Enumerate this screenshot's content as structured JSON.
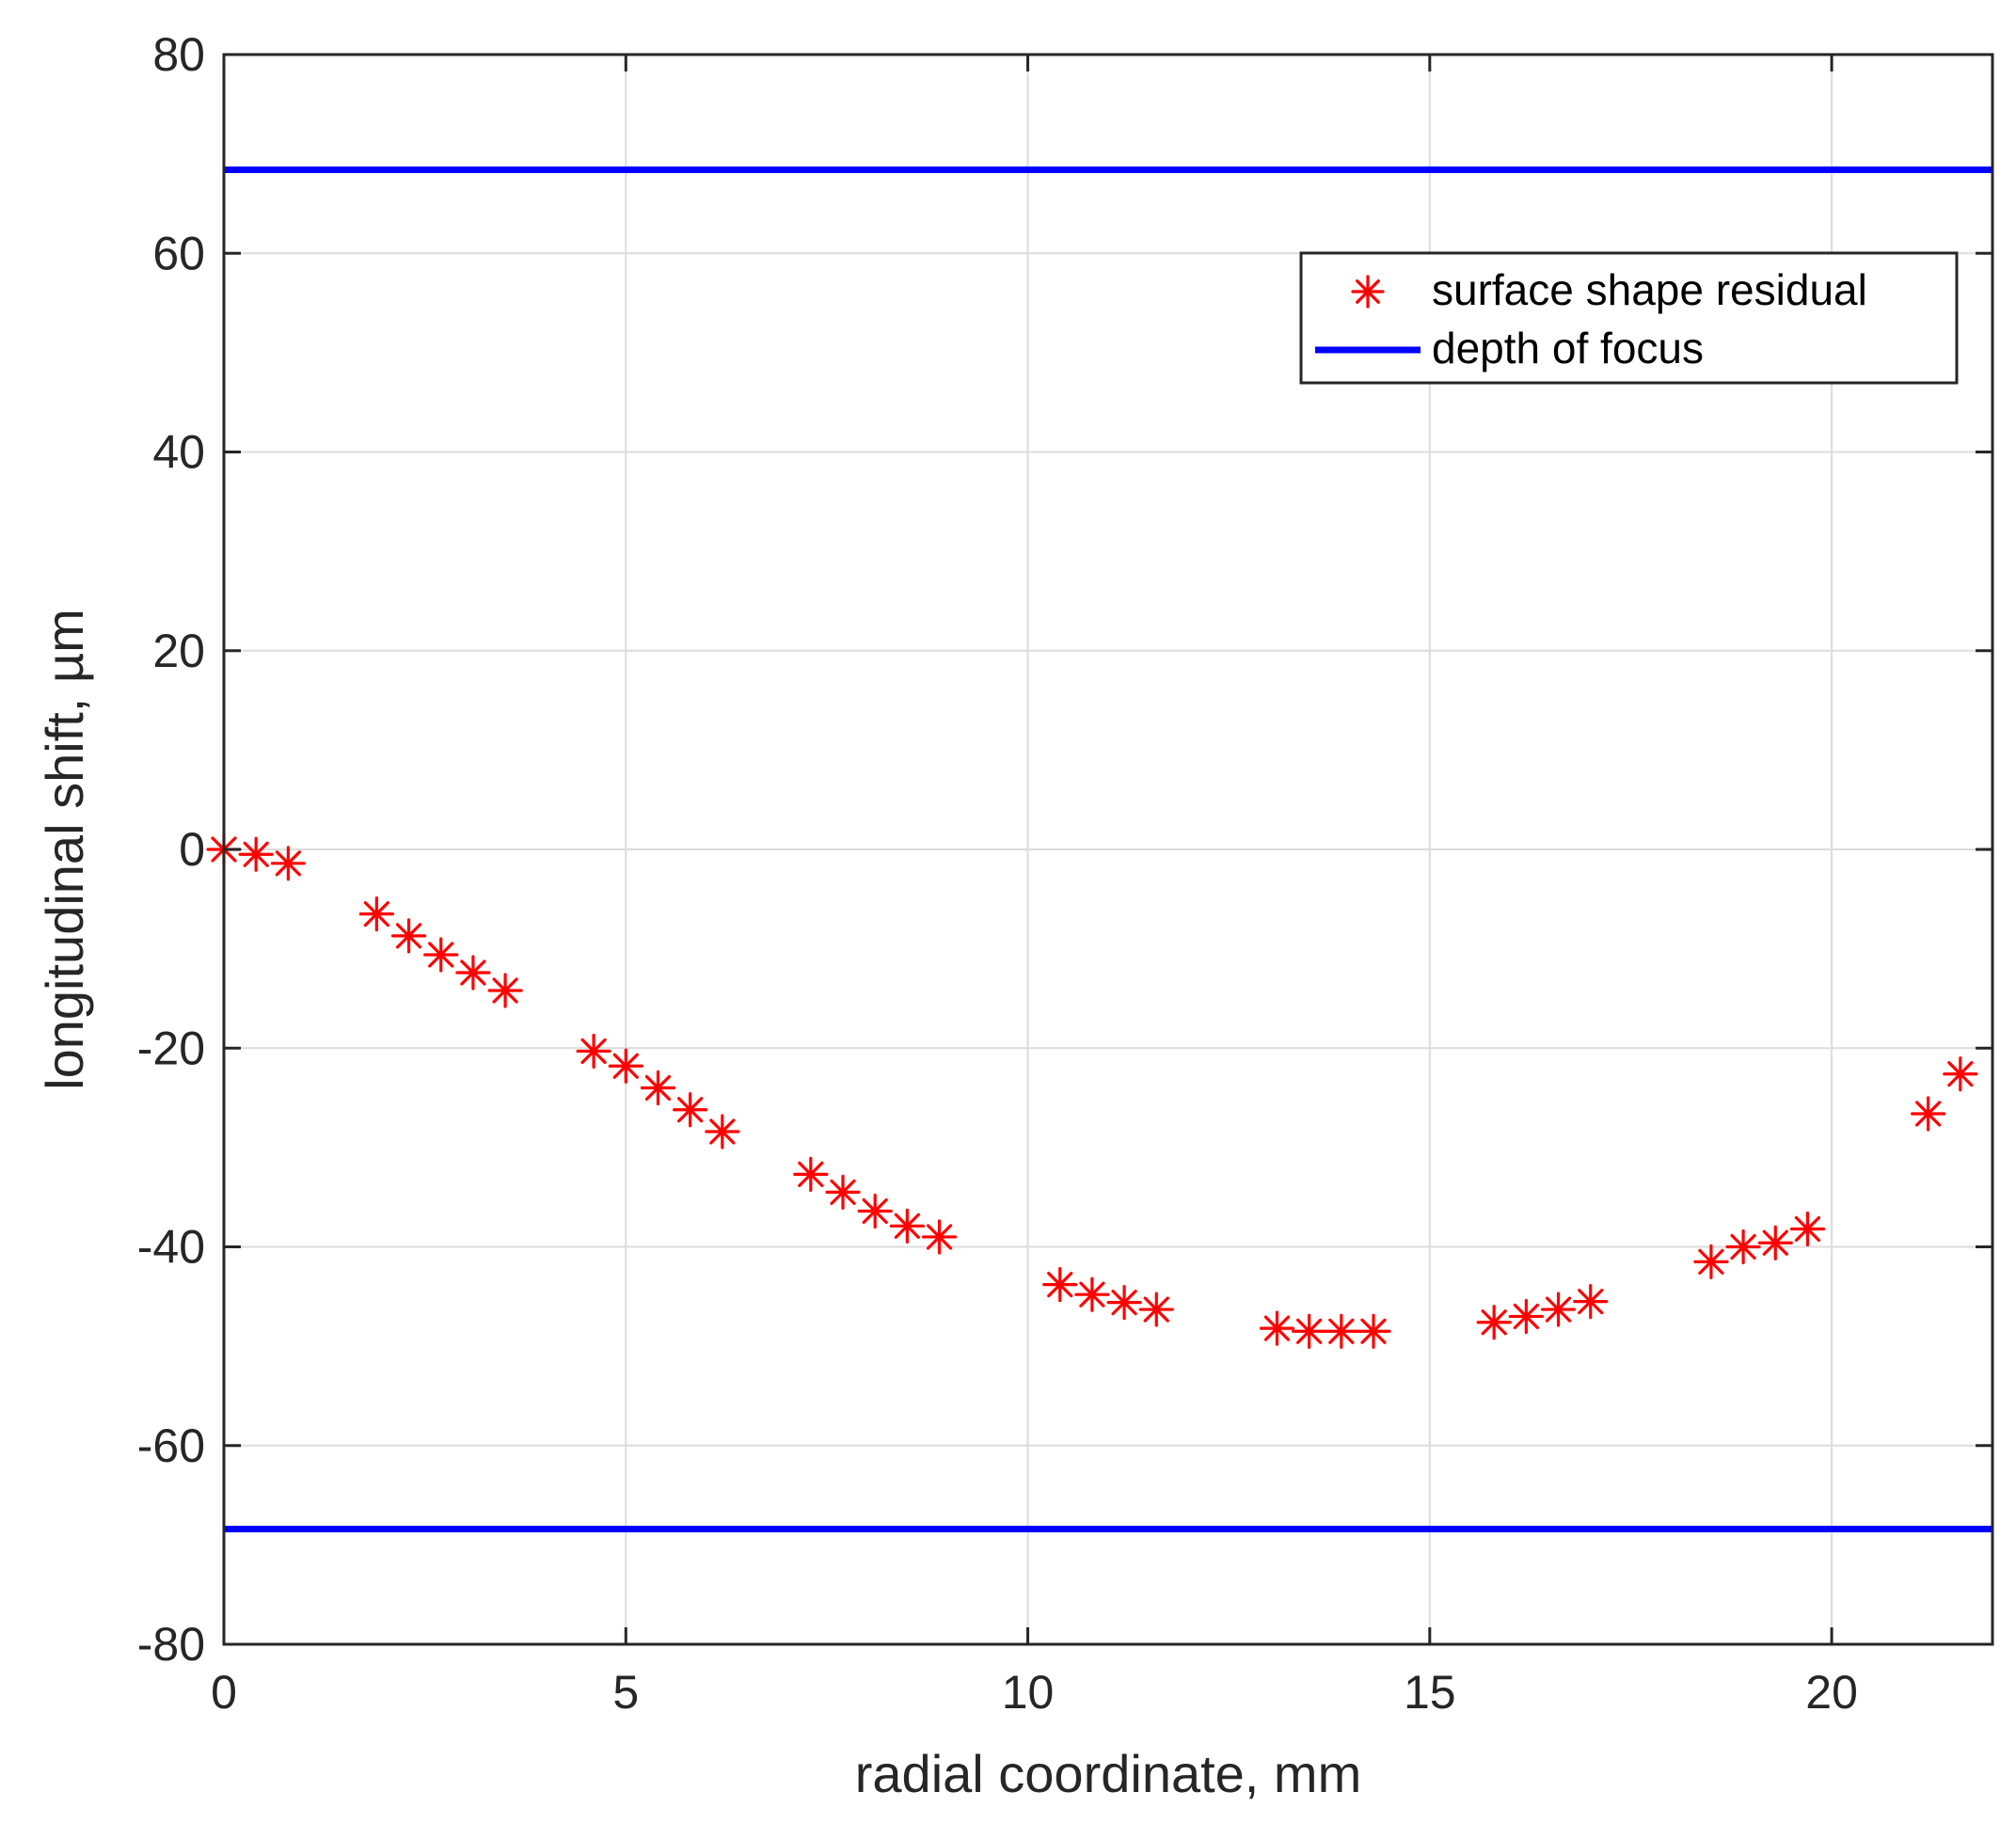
{
  "chart_data": {
    "type": "scatter",
    "title": "",
    "xlabel": "radial coordinate, mm",
    "ylabel": "longitudinal shift, µm",
    "xlim": [
      0,
      22
    ],
    "ylim": [
      -80,
      80
    ],
    "xticks": [
      0,
      5,
      10,
      15,
      20
    ],
    "yticks": [
      -80,
      -60,
      -40,
      -20,
      0,
      20,
      40,
      60,
      80
    ],
    "grid": true,
    "legend_position": "top-right",
    "colors": {
      "scatter": "#ff0000",
      "line": "#0000ff",
      "grid": "#dcdcdc",
      "axes": "#262626"
    },
    "series": [
      {
        "name": "surface shape residual",
        "type": "scatter",
        "marker": "asterisk",
        "x": [
          0.0,
          0.4,
          0.8,
          1.9,
          2.3,
          2.7,
          3.1,
          3.5,
          4.6,
          5.0,
          5.4,
          5.8,
          6.2,
          7.3,
          7.7,
          8.1,
          8.5,
          8.9,
          10.4,
          10.8,
          11.2,
          11.6,
          13.1,
          13.5,
          13.9,
          14.3,
          15.8,
          16.2,
          16.6,
          17.0,
          18.5,
          18.9,
          19.3,
          19.7,
          21.2,
          21.6
        ],
        "y": [
          0.0,
          -0.5,
          -1.4,
          -6.5,
          -8.7,
          -10.6,
          -12.4,
          -14.2,
          -20.3,
          -21.8,
          -24.0,
          -26.2,
          -28.4,
          -32.7,
          -34.5,
          -36.4,
          -37.9,
          -39.0,
          -43.8,
          -44.8,
          -45.6,
          -46.3,
          -48.2,
          -48.5,
          -48.5,
          -48.5,
          -47.6,
          -47.0,
          -46.3,
          -45.5,
          -41.5,
          -40.0,
          -39.6,
          -38.2,
          -26.6,
          -22.6
        ]
      },
      {
        "name": "depth of focus",
        "type": "hline",
        "values": [
          68.4,
          -68.4
        ]
      }
    ]
  }
}
